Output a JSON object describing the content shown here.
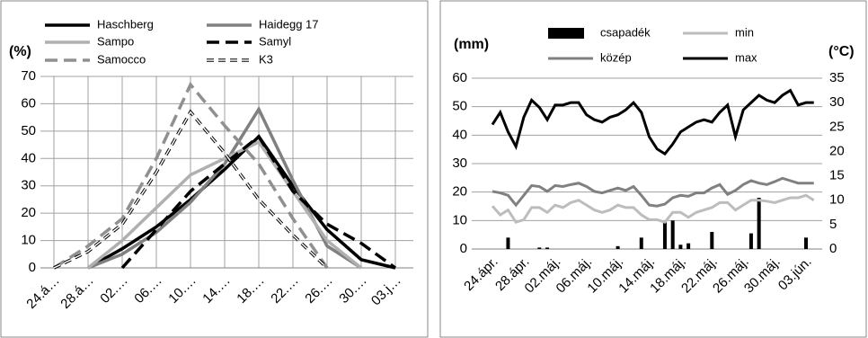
{
  "chart_data": [
    {
      "type": "line",
      "y_label": "(%)",
      "grid": "both",
      "categories": [
        "24.á…",
        "28.á…",
        "02.…",
        "06.…",
        "10.…",
        "14.…",
        "18.…",
        "22.…",
        "26.…",
        "30.…",
        "03.j…"
      ],
      "ylim": [
        0,
        70
      ],
      "yticks": [
        0,
        10,
        20,
        30,
        40,
        50,
        60,
        70
      ],
      "series": [
        {
          "name": "Haschberg",
          "color": "#000000",
          "style": "solid",
          "values": [
            null,
            0,
            7,
            15,
            25,
            36,
            48,
            30,
            14,
            3,
            0
          ]
        },
        {
          "name": "Haidegg 17",
          "color": "#808080",
          "style": "solid",
          "values": [
            null,
            0,
            5,
            13,
            24,
            38,
            58,
            32,
            8,
            0,
            null
          ]
        },
        {
          "name": "Sampo",
          "color": "#b0b0b0",
          "style": "solid",
          "values": [
            null,
            0,
            10,
            22,
            34,
            40,
            46,
            28,
            10,
            0,
            null
          ]
        },
        {
          "name": "Samyl",
          "color": "#000000",
          "style": "dashed",
          "values": [
            null,
            null,
            0,
            14,
            28,
            38,
            48,
            28,
            16,
            9,
            0
          ]
        },
        {
          "name": "Samocco",
          "color": "#909090",
          "style": "dashed",
          "values": [
            0,
            8,
            18,
            40,
            67,
            52,
            38,
            18,
            0,
            null,
            null
          ]
        },
        {
          "name": "K3",
          "color": "#000000",
          "style": "hollow-dashed",
          "values": [
            0,
            6,
            16,
            35,
            57,
            42,
            25,
            12,
            0,
            null,
            null
          ]
        }
      ]
    },
    {
      "type": "bar-line",
      "y_label": "(mm)",
      "y2_label": "(°C)",
      "grid": "y",
      "categories": [
        "24.ápr.",
        null,
        null,
        null,
        "28.ápr.",
        null,
        null,
        null,
        "02.máj.",
        null,
        null,
        null,
        "06.máj.",
        null,
        null,
        null,
        "10.máj.",
        null,
        null,
        null,
        "14.máj.",
        null,
        null,
        null,
        "18.máj.",
        null,
        null,
        null,
        "22.máj.",
        null,
        null,
        null,
        "26.máj.",
        null,
        null,
        null,
        "30.máj.",
        null,
        null,
        null,
        "03.jún.",
        null
      ],
      "ylim": [
        0,
        60
      ],
      "yticks": [
        0,
        10,
        20,
        30,
        40,
        50,
        60
      ],
      "y2lim": [
        0,
        35
      ],
      "y2ticks": [
        0,
        5,
        10,
        15,
        20,
        25,
        30,
        35
      ],
      "series": [
        {
          "name": "csapadék",
          "color": "#000000",
          "kind": "bar",
          "values": [
            0,
            0,
            4,
            0,
            0,
            0,
            0.5,
            0.5,
            0,
            0,
            0,
            0,
            0,
            0,
            0,
            0,
            1,
            0,
            0,
            4,
            0,
            0,
            10,
            10,
            1.5,
            2,
            0,
            0,
            6,
            0,
            0,
            0,
            0,
            5.5,
            18,
            0,
            0,
            0,
            0,
            0,
            4,
            0
          ]
        },
        {
          "name": "min",
          "color": "#bdbdbd",
          "kind": "line",
          "axis": "y2",
          "values": [
            8.8,
            7,
            8,
            5.5,
            6,
            8.5,
            8.5,
            7.5,
            9,
            8.5,
            9.5,
            10,
            9,
            8,
            7.5,
            8,
            9,
            8.5,
            8.5,
            7,
            6,
            6,
            5.5,
            7.5,
            7.5,
            6.5,
            7.5,
            8,
            8.5,
            9.5,
            9.5,
            8,
            9,
            10,
            10,
            9.8,
            9.5,
            10,
            10.5,
            10.5,
            11,
            10
          ]
        },
        {
          "name": "közép",
          "color": "#808080",
          "kind": "line",
          "axis": "y2",
          "values": [
            11.8,
            11.5,
            11,
            9,
            11,
            13,
            12.8,
            11.8,
            13,
            12.8,
            13.2,
            13.5,
            12.8,
            11.8,
            11.5,
            12,
            12.5,
            12,
            12.8,
            11,
            9,
            8.8,
            9.2,
            10.5,
            11,
            10.8,
            11.5,
            11.5,
            12.5,
            13.2,
            11.2,
            12,
            13.2,
            14,
            13.5,
            13.2,
            13.8,
            14.5,
            14,
            13.5,
            13.5,
            13.5
          ]
        },
        {
          "name": "max",
          "color": "#000000",
          "kind": "line",
          "axis": "y2",
          "values": [
            25.5,
            28,
            24,
            21,
            27,
            30.5,
            29,
            26.5,
            29.5,
            29.5,
            30,
            30,
            27.5,
            26.5,
            26,
            27,
            27.5,
            28.5,
            30,
            28,
            23,
            20.5,
            19.5,
            21.5,
            24,
            25,
            26,
            26.5,
            26,
            28,
            29.5,
            23,
            28.5,
            30,
            31.5,
            30.5,
            30,
            31.5,
            32.5,
            29.5,
            30,
            30
          ]
        }
      ]
    }
  ]
}
